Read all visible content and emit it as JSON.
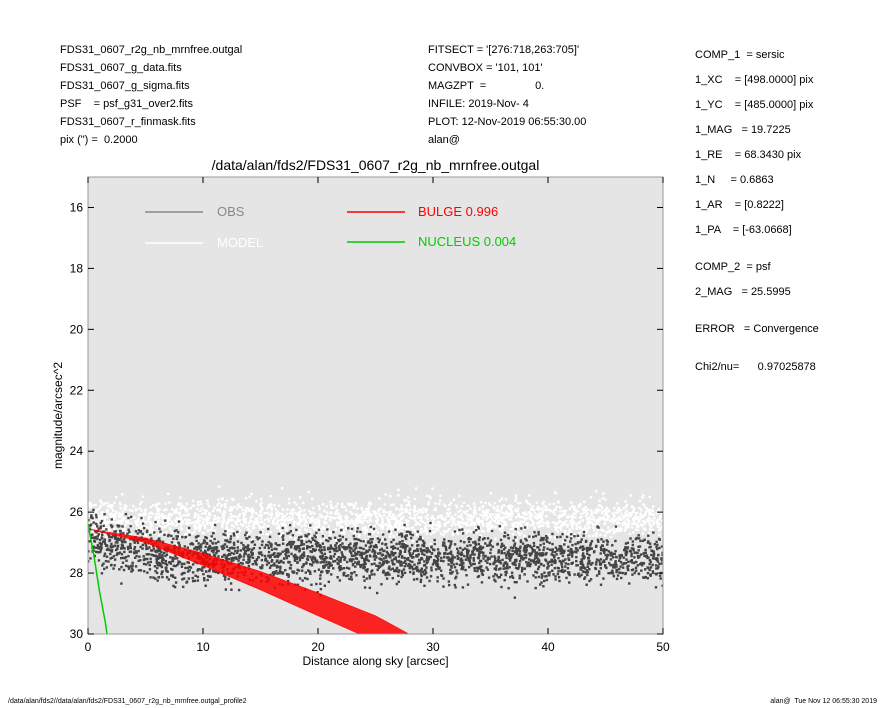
{
  "header_left": [
    "FDS31_0607_r2g_nb_mrnfree.outgal",
    "FDS31_0607_g_data.fits",
    "FDS31_0607_g_sigma.fits",
    "PSF    = psf_g31_over2.fits",
    "FDS31_0607_r_finmask.fits",
    "pix (\") =  0.2000"
  ],
  "header_mid": [
    "FITSECT = '[276:718,263:705]'",
    "CONVBOX = '101, 101'",
    "MAGZPT  =                0.",
    "INFILE: 2019-Nov- 4",
    "PLOT: 12-Nov-2019 06:55:30.00",
    "alan@"
  ],
  "params": [
    "COMP_1  = sersic",
    "1_XC    = [498.0000] pix",
    "1_YC    = [485.0000] pix",
    "1_MAG   = 19.7225",
    "1_RE    = 68.3430 pix",
    "1_N     = 0.6863",
    "1_AR    = [0.8222]",
    "1_PA    = [-63.0668]",
    "COMP_2  = psf",
    "2_MAG   = 25.5995",
    "ERROR   = Convergence",
    "Chi2/nu=      0.97025878"
  ],
  "footer_left": "/data/alan/fds2//data/alan/fds2/FDS31_0607_r2g_nb_mrnfree.outgal_profile2",
  "footer_right": "alan@  Tue Nov 12 06:55:30 2019",
  "colors": {
    "plot_bg": "#e5e5e5",
    "obs": "#888888",
    "model": "#ffffff",
    "obs_points": "#444444",
    "bulge": "#ff0000",
    "nucleus": "#00cc00"
  },
  "chart_data": {
    "type": "scatter",
    "title": "/data/alan/fds2/FDS31_0607_r2g_nb_mrnfree.outgal",
    "xlabel": "Distance along sky [arcsec]",
    "ylabel": "magnitude/arcsec^2",
    "xlim": [
      0,
      50
    ],
    "ylim": [
      15,
      30
    ],
    "y_inverted": true,
    "xticks": [
      0,
      10,
      20,
      30,
      40,
      50
    ],
    "yticks": [
      16,
      18,
      20,
      22,
      24,
      26,
      28,
      30
    ],
    "legend": [
      {
        "label": "OBS",
        "value": "",
        "color": "#888888"
      },
      {
        "label": "MODEL",
        "value": "",
        "color": "#ffffff"
      },
      {
        "label": "BULGE",
        "value": "0.996",
        "color": "#ff0000"
      },
      {
        "label": "NUCLEUS",
        "value": "0.004",
        "color": "#00cc00"
      }
    ],
    "series": [
      {
        "name": "OBS",
        "description_range": {
          "x": [
            0,
            50
          ],
          "mag_center": 27.5,
          "mag_spread": [
            25.7,
            30
          ]
        }
      },
      {
        "name": "MODEL",
        "description_range": {
          "x": [
            0,
            50
          ],
          "mag_center": 26.3,
          "mag_spread": [
            25.5,
            28
          ]
        }
      },
      {
        "name": "BULGE",
        "upper": [
          [
            0,
            26.55
          ],
          [
            5,
            26.85
          ],
          [
            10,
            27.35
          ],
          [
            15,
            27.95
          ],
          [
            20,
            28.65
          ],
          [
            25,
            29.4
          ],
          [
            27.9,
            30
          ]
        ],
        "lower": [
          [
            0,
            26.55
          ],
          [
            5,
            27.0
          ],
          [
            10,
            27.75
          ],
          [
            15,
            28.55
          ],
          [
            20,
            29.4
          ],
          [
            23.6,
            30
          ]
        ]
      },
      {
        "name": "NUCLEUS",
        "points": [
          [
            0,
            26.4
          ],
          [
            0.5,
            27.4
          ],
          [
            1.0,
            28.6
          ],
          [
            1.5,
            29.6
          ],
          [
            1.65,
            30
          ]
        ]
      }
    ]
  }
}
